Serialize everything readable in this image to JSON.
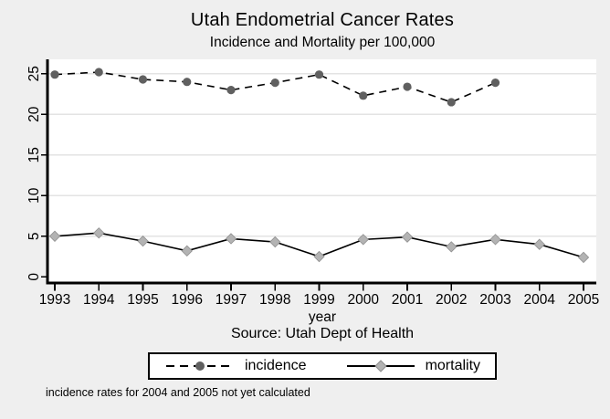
{
  "title": "Utah Endometrial Cancer Rates",
  "subtitle": "Incidence and Mortality per 100,000",
  "source_note": "Source: Utah Dept of Health",
  "footnote": "incidence rates for 2004 and 2005 not yet calculated",
  "colors": {
    "figure_background": "#efefef",
    "plot_background": "#ffffff",
    "gridline": "#e3e3e3",
    "axis": "#000000",
    "incidence_marker": "#606060",
    "mortality_marker": "#b3b3b3",
    "mortality_marker_edge": "#8f8f8f",
    "line": "#000000"
  },
  "chart_data": {
    "type": "line",
    "x": [
      1993,
      1994,
      1995,
      1996,
      1997,
      1998,
      1999,
      2000,
      2001,
      2002,
      2003,
      2004,
      2005
    ],
    "xlabel": "year",
    "ylabel": "",
    "ylim": [
      0,
      27
    ],
    "yticks": [
      0,
      5,
      10,
      15,
      20,
      25
    ],
    "grid": true,
    "legend_position": "bottom",
    "series": [
      {
        "name": "incidence",
        "values": [
          24.9,
          25.2,
          24.3,
          24.0,
          23.0,
          23.9,
          24.9,
          22.3,
          23.4,
          21.5,
          23.9,
          null,
          null
        ],
        "line_style": "dashed",
        "marker": "circle"
      },
      {
        "name": "mortality",
        "values": [
          5.0,
          5.4,
          4.4,
          3.2,
          4.7,
          4.3,
          2.5,
          4.6,
          4.9,
          3.7,
          4.6,
          4.0,
          2.4
        ],
        "line_style": "solid",
        "marker": "diamond"
      }
    ]
  }
}
